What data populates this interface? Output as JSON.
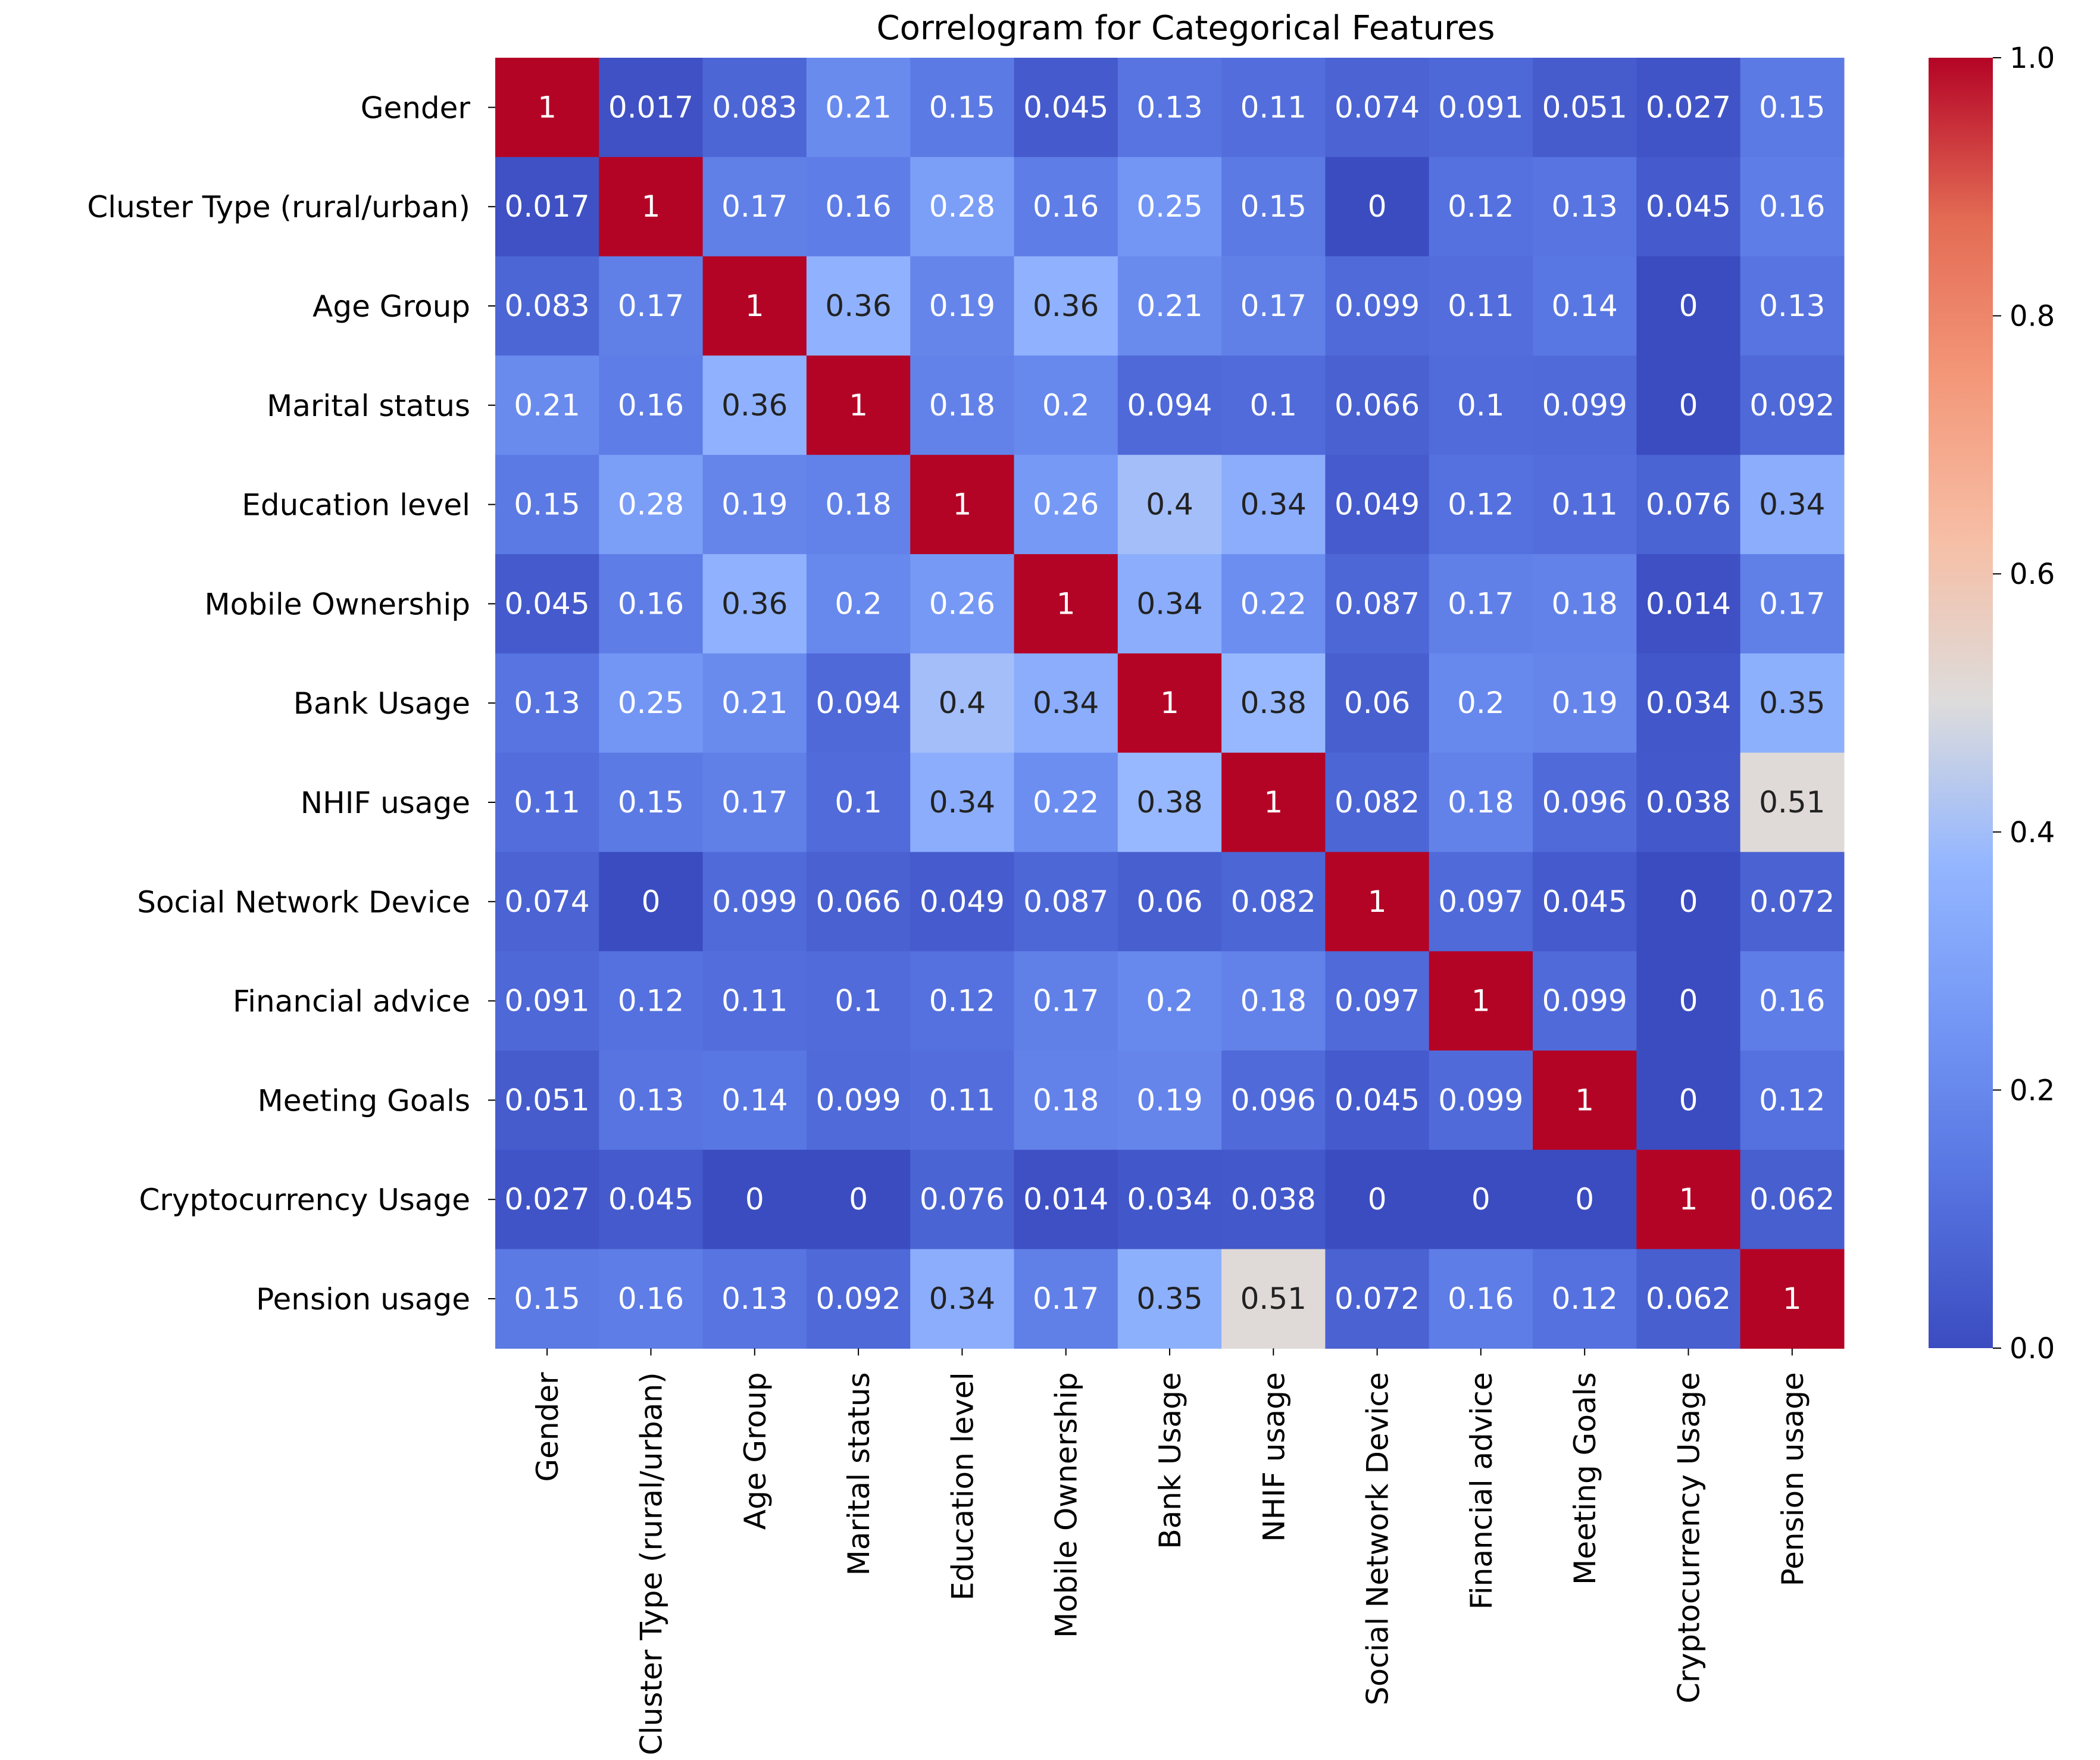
{
  "chart_data": {
    "type": "heatmap",
    "title": "Correlogram for Categorical Features",
    "row_labels": [
      "Gender",
      "Cluster Type (rural/urban)",
      "Age Group",
      "Marital status",
      "Education level",
      "Mobile Ownership",
      "Bank Usage",
      "NHIF usage",
      "Social Network Device",
      "Financial advice",
      "Meeting Goals",
      "Cryptocurrency Usage",
      "Pension usage"
    ],
    "col_labels": [
      "Gender",
      "Cluster Type (rural/urban)",
      "Age Group",
      "Marital status",
      "Education level",
      "Mobile Ownership",
      "Bank Usage",
      "NHIF usage",
      "Social Network Device",
      "Financial advice",
      "Meeting Goals",
      "Cryptocurrency Usage",
      "Pension usage"
    ],
    "values": [
      [
        1,
        0.017,
        0.083,
        0.21,
        0.15,
        0.045,
        0.13,
        0.11,
        0.074,
        0.091,
        0.051,
        0.027,
        0.15
      ],
      [
        0.017,
        1,
        0.17,
        0.16,
        0.28,
        0.16,
        0.25,
        0.15,
        0,
        0.12,
        0.13,
        0.045,
        0.16
      ],
      [
        0.083,
        0.17,
        1,
        0.36,
        0.19,
        0.36,
        0.21,
        0.17,
        0.099,
        0.11,
        0.14,
        0,
        0.13
      ],
      [
        0.21,
        0.16,
        0.36,
        1,
        0.18,
        0.2,
        0.094,
        0.1,
        0.066,
        0.1,
        0.099,
        0,
        0.092
      ],
      [
        0.15,
        0.28,
        0.19,
        0.18,
        1,
        0.26,
        0.4,
        0.34,
        0.049,
        0.12,
        0.11,
        0.076,
        0.34
      ],
      [
        0.045,
        0.16,
        0.36,
        0.2,
        0.26,
        1,
        0.34,
        0.22,
        0.087,
        0.17,
        0.18,
        0.014,
        0.17
      ],
      [
        0.13,
        0.25,
        0.21,
        0.094,
        0.4,
        0.34,
        1,
        0.38,
        0.06,
        0.2,
        0.19,
        0.034,
        0.35
      ],
      [
        0.11,
        0.15,
        0.17,
        0.1,
        0.34,
        0.22,
        0.38,
        1,
        0.082,
        0.18,
        0.096,
        0.038,
        0.51
      ],
      [
        0.074,
        0,
        0.099,
        0.066,
        0.049,
        0.087,
        0.06,
        0.082,
        1,
        0.097,
        0.045,
        0,
        0.072
      ],
      [
        0.091,
        0.12,
        0.11,
        0.1,
        0.12,
        0.17,
        0.2,
        0.18,
        0.097,
        1,
        0.099,
        0,
        0.16
      ],
      [
        0.051,
        0.13,
        0.14,
        0.099,
        0.11,
        0.18,
        0.19,
        0.096,
        0.045,
        0.099,
        1,
        0,
        0.12
      ],
      [
        0.027,
        0.045,
        0,
        0,
        0.076,
        0.014,
        0.034,
        0.038,
        0,
        0,
        0,
        1,
        0.062
      ],
      [
        0.15,
        0.16,
        0.13,
        0.092,
        0.34,
        0.17,
        0.35,
        0.51,
        0.072,
        0.16,
        0.12,
        0.062,
        1
      ]
    ],
    "colorbar": {
      "min": 0.0,
      "max": 1.0,
      "ticks": [
        0.0,
        0.2,
        0.4,
        0.6,
        0.8,
        1.0
      ],
      "tick_labels": [
        "0.0",
        "0.2",
        "0.4",
        "0.6",
        "0.8",
        "1.0"
      ],
      "colormap": "coolwarm"
    },
    "annotated": true
  }
}
